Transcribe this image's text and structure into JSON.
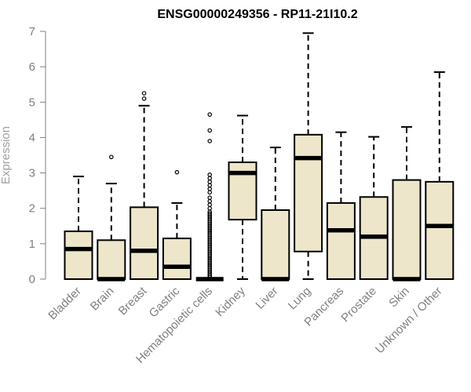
{
  "chart_data": {
    "type": "boxplot",
    "title": "ENSG00000249356 - RP11-21I10.2",
    "xlabel": "",
    "ylabel": "Expression",
    "ylim": [
      0,
      7
    ],
    "yticks": [
      0,
      1,
      2,
      3,
      4,
      5,
      6,
      7
    ],
    "grid": false,
    "box_color": "#ede6ca",
    "categories": [
      "Bladder",
      "Brain",
      "Breast",
      "Gastric",
      "Hematopoietic cells",
      "Kidney",
      "Liver",
      "Lung",
      "Pancreas",
      "Prostate",
      "Skin",
      "Unknown / Other"
    ],
    "boxes": [
      {
        "min": 0,
        "q1": 0,
        "median": 0.85,
        "q3": 1.35,
        "max": 2.9,
        "outliers": []
      },
      {
        "min": 0,
        "q1": 0,
        "median": 0,
        "q3": 1.1,
        "max": 2.7,
        "outliers": [
          3.45
        ]
      },
      {
        "min": 0,
        "q1": 0,
        "median": 0.8,
        "q3": 2.03,
        "max": 4.9,
        "outliers": [
          5.1,
          5.25
        ]
      },
      {
        "min": 0,
        "q1": 0,
        "median": 0.35,
        "q3": 1.15,
        "max": 2.15,
        "outliers": [
          3.02
        ]
      },
      {
        "min": 0,
        "q1": 0,
        "median": 0,
        "q3": 0,
        "max": 0,
        "outliers": [
          0.05,
          0.1,
          0.15,
          0.2,
          0.25,
          0.3,
          0.35,
          0.4,
          0.45,
          0.5,
          0.55,
          0.6,
          0.65,
          0.7,
          0.75,
          0.8,
          0.85,
          0.9,
          0.95,
          1.0,
          1.05,
          1.1,
          1.15,
          1.2,
          1.25,
          1.3,
          1.35,
          1.4,
          1.45,
          1.5,
          1.55,
          1.6,
          1.65,
          1.7,
          1.75,
          1.8,
          1.85,
          1.9,
          2.0,
          2.1,
          2.2,
          2.3,
          2.45,
          2.55,
          2.65,
          2.75,
          2.85,
          2.95,
          3.9,
          4.2,
          4.65
        ]
      },
      {
        "min": 0,
        "q1": 1.68,
        "median": 3.0,
        "q3": 3.3,
        "max": 4.62,
        "outliers": []
      },
      {
        "min": 0,
        "q1": 0,
        "median": 0,
        "q3": 1.95,
        "max": 3.72,
        "outliers": []
      },
      {
        "min": 0,
        "q1": 0.78,
        "median": 3.42,
        "q3": 4.08,
        "max": 6.95,
        "outliers": []
      },
      {
        "min": 0,
        "q1": 0,
        "median": 1.38,
        "q3": 2.15,
        "max": 4.15,
        "outliers": []
      },
      {
        "min": 0,
        "q1": 0,
        "median": 1.2,
        "q3": 2.32,
        "max": 4.02,
        "outliers": []
      },
      {
        "min": 0,
        "q1": 0,
        "median": 0,
        "q3": 2.8,
        "max": 4.3,
        "outliers": []
      },
      {
        "min": 0,
        "q1": 0,
        "median": 1.5,
        "q3": 2.75,
        "max": 5.85,
        "outliers": []
      }
    ]
  }
}
